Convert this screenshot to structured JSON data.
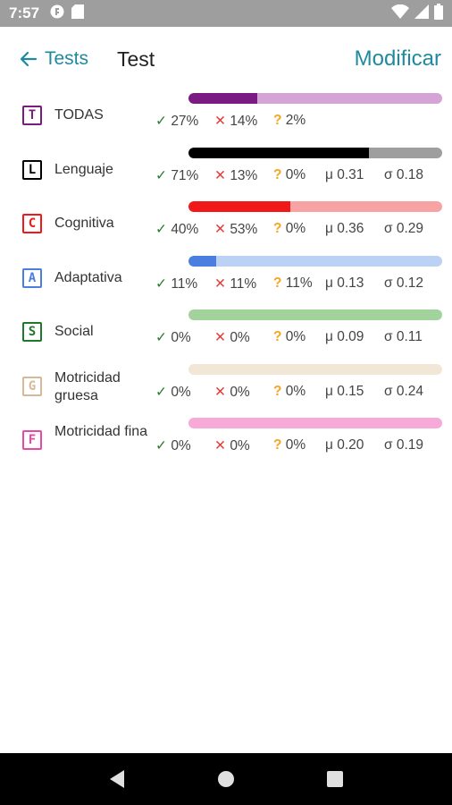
{
  "status_bar": {
    "time": "7:57"
  },
  "header": {
    "back_label": "Tests",
    "title": "Test",
    "action_label": "Modificar"
  },
  "areas": [
    {
      "letter": "T",
      "name": "TODAS",
      "color": "#7b1a82",
      "track": "#d4a4d6",
      "progress": 0.27,
      "ok": "27%",
      "ko": "14%",
      "q": "2%",
      "mu": "",
      "sigma": ""
    },
    {
      "letter": "L",
      "name": "Lenguaje",
      "color": "#000000",
      "track": "#9e9e9e",
      "progress": 0.71,
      "ok": "71%",
      "ko": "13%",
      "q": "0%",
      "mu": "μ 0.31",
      "sigma": "σ 0.18"
    },
    {
      "letter": "C",
      "name": "Cognitiva",
      "color": "#f01818",
      "track": "#f7a3a3",
      "progress": 0.4,
      "ok": "40%",
      "ko": "53%",
      "q": "0%",
      "mu": "μ 0.36",
      "sigma": "σ 0.29"
    },
    {
      "letter": "A",
      "name": "Adaptativa",
      "color": "#4a7fe0",
      "track": "#bcd2f4",
      "progress": 0.11,
      "ok": "11%",
      "ko": "11%",
      "q": "11%",
      "mu": "μ 0.13",
      "sigma": "σ 0.12"
    },
    {
      "letter": "S",
      "name": "Social",
      "color": "#1d7a2a",
      "track": "#a3d39c",
      "progress": 0,
      "ok": "0%",
      "ko": "0%",
      "q": "0%",
      "mu": "μ 0.09",
      "sigma": "σ 0.11"
    },
    {
      "letter": "G",
      "name": "Motricidad gruesa",
      "color": "#d8b896",
      "track": "#f2e6d6",
      "progress": 0,
      "ok": "0%",
      "ko": "0%",
      "q": "0%",
      "mu": "μ 0.15",
      "sigma": "σ 0.24"
    },
    {
      "letter": "F",
      "name": "Motricidad fina",
      "color": "#e64aa3",
      "track": "#f7aad8",
      "progress": 0,
      "ok": "0%",
      "ko": "0%",
      "q": "0%",
      "mu": "μ 0.20",
      "sigma": "σ 0.19"
    }
  ],
  "icons": {
    "ok": "check-mark-icon",
    "ko": "cross-mark-icon",
    "q": "question-mark-icon"
  }
}
